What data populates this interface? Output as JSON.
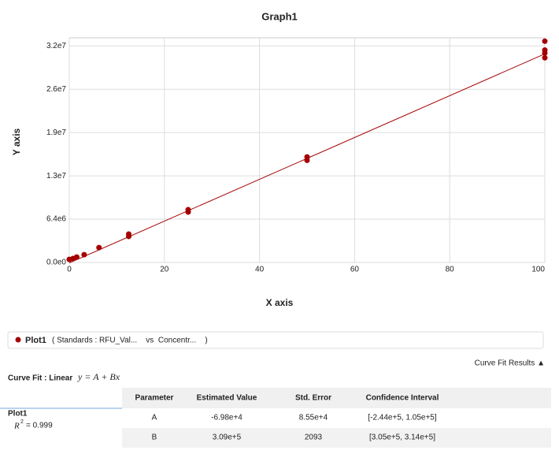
{
  "chart_data": {
    "type": "scatter",
    "title": "Graph1",
    "x_label": "X axis",
    "y_label": "Y axis",
    "xlim": [
      0,
      100
    ],
    "ylim": [
      0,
      33200000
    ],
    "xticks": [
      0,
      20,
      40,
      60,
      80,
      100
    ],
    "yticks": [
      {
        "value": 0,
        "label": "0.0e0"
      },
      {
        "value": 6400000,
        "label": "6.4e6"
      },
      {
        "value": 12800000,
        "label": "1.3e7"
      },
      {
        "value": 19200000,
        "label": "1.9e7"
      },
      {
        "value": 25600000,
        "label": "2.6e7"
      },
      {
        "value": 32000000,
        "label": "3.2e7"
      }
    ],
    "grid": true,
    "series": [
      {
        "name": "Plot1",
        "color": "#a50000",
        "x": [
          0,
          0.78,
          1.56,
          3.125,
          6.25,
          12.5,
          12.5,
          25,
          25,
          50,
          50,
          100,
          100,
          100,
          100
        ],
        "values": [
          450000,
          580000,
          800000,
          1150000,
          2200000,
          4200000,
          3850000,
          7800000,
          7450000,
          15600000,
          15100000,
          32700000,
          31400000,
          30950000,
          30250000
        ]
      }
    ]
  },
  "legend": {
    "description": "( Standards : RFU_Val...    vs  Concentr...    )"
  },
  "curve_fit": {
    "label": "Curve Fit : Linear",
    "equation": "y = A + Bx",
    "results_toggle": "Curve Fit Results ▲"
  },
  "table": {
    "columns": [
      "Parameter",
      "Estimated Value",
      "Std. Error",
      "Confidence Interval"
    ],
    "plot": "Plot1",
    "r2": {
      "symbol": "R",
      "exponent": "2",
      "text": "= 0.999"
    },
    "rows": [
      [
        "A",
        "-6.98e+4",
        "8.55e+4",
        "[-2.44e+5, 1.05e+5]"
      ],
      [
        "B",
        "3.09e+5",
        "2093",
        "[3.05e+5, 3.14e+5]"
      ]
    ]
  }
}
